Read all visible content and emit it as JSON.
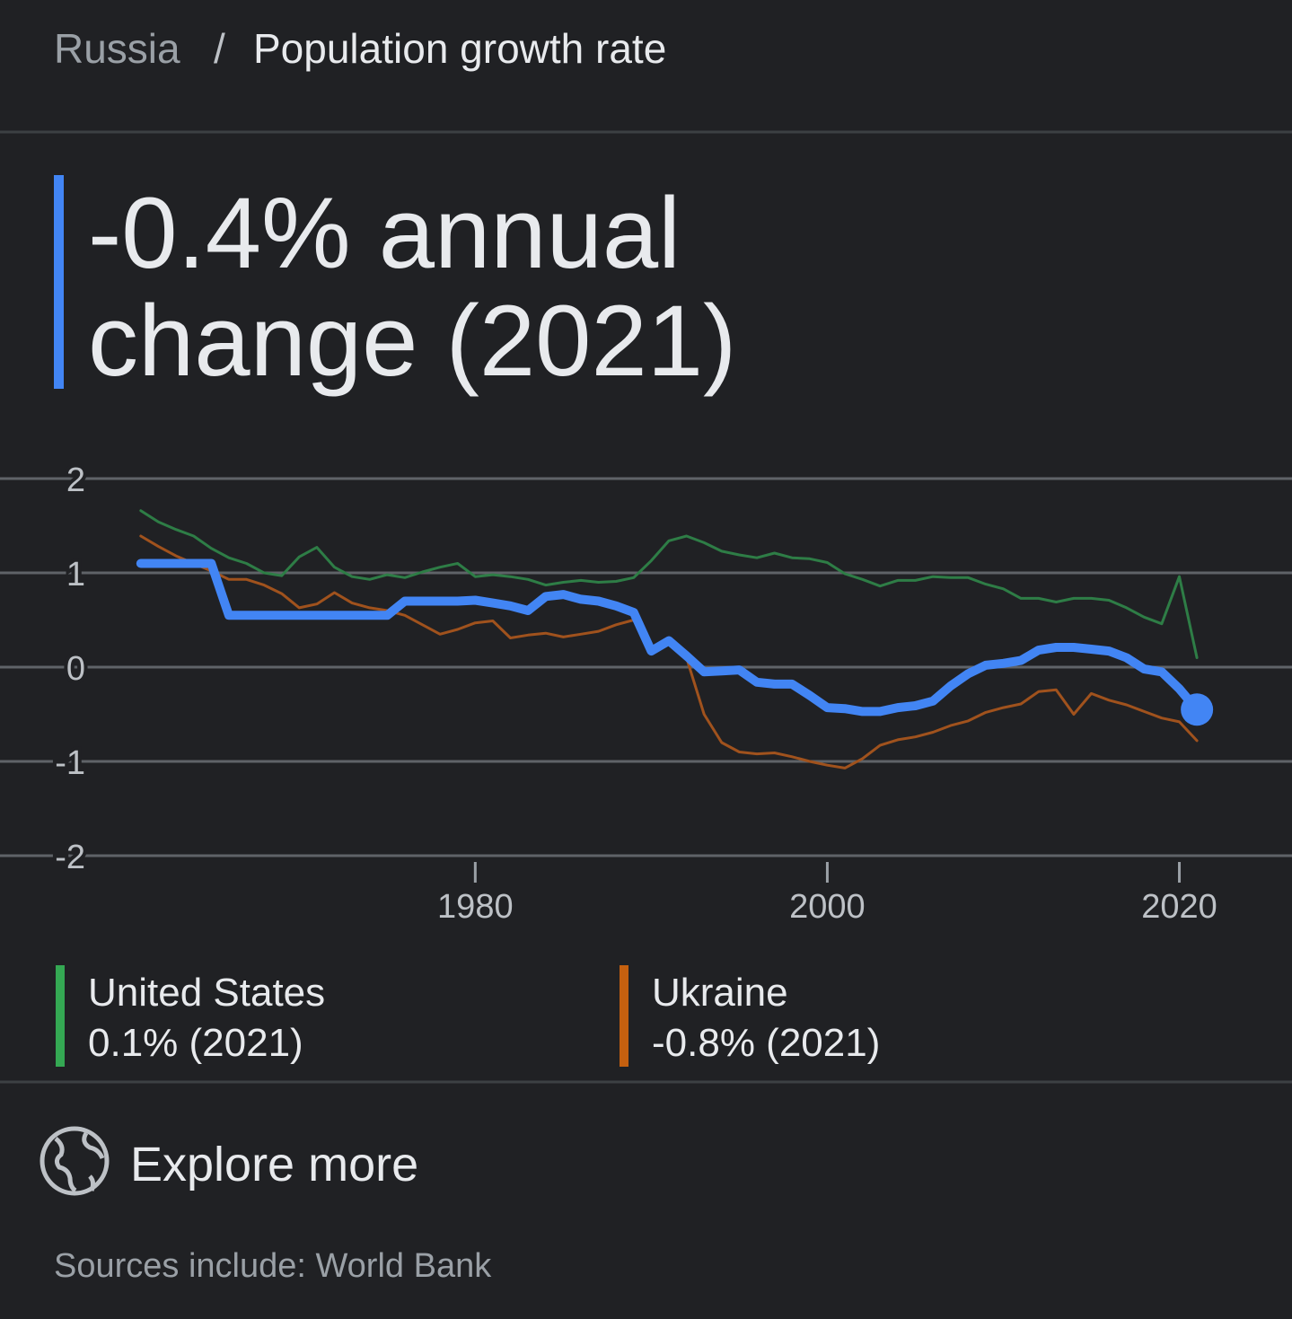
{
  "breadcrumb": {
    "parent": "Russia",
    "separator": "/",
    "current": "Population growth rate"
  },
  "headline": {
    "line1": "-0.4% annual",
    "line2": "change (2021)"
  },
  "chart_data": {
    "type": "line",
    "x": [
      1961,
      1962,
      1963,
      1964,
      1965,
      1966,
      1967,
      1968,
      1969,
      1970,
      1971,
      1972,
      1973,
      1974,
      1975,
      1976,
      1977,
      1978,
      1979,
      1980,
      1981,
      1982,
      1983,
      1984,
      1985,
      1986,
      1987,
      1988,
      1989,
      1990,
      1991,
      1992,
      1993,
      1994,
      1995,
      1996,
      1997,
      1998,
      1999,
      2000,
      2001,
      2002,
      2003,
      2004,
      2005,
      2006,
      2007,
      2008,
      2009,
      2010,
      2011,
      2012,
      2013,
      2014,
      2015,
      2016,
      2017,
      2018,
      2019,
      2020,
      2021
    ],
    "series": [
      {
        "name": "United States",
        "color": "#2e7d46",
        "legend_color": "#34a853",
        "summary": "0.1% (2021)",
        "values": [
          1.66,
          1.54,
          1.46,
          1.39,
          1.26,
          1.16,
          1.1,
          1.0,
          0.97,
          1.17,
          1.27,
          1.06,
          0.96,
          0.93,
          0.98,
          0.95,
          1.01,
          1.06,
          1.1,
          0.96,
          0.98,
          0.96,
          0.93,
          0.87,
          0.9,
          0.92,
          0.9,
          0.91,
          0.95,
          1.13,
          1.34,
          1.39,
          1.32,
          1.23,
          1.19,
          1.16,
          1.21,
          1.16,
          1.15,
          1.11,
          0.99,
          0.93,
          0.86,
          0.92,
          0.92,
          0.96,
          0.95,
          0.95,
          0.88,
          0.83,
          0.73,
          0.73,
          0.69,
          0.73,
          0.73,
          0.71,
          0.63,
          0.53,
          0.46,
          0.96,
          0.1
        ]
      },
      {
        "name": "Ukraine",
        "color": "#a0521d",
        "legend_color": "#c5600f",
        "summary": "-0.8% (2021)",
        "values": [
          1.39,
          1.28,
          1.18,
          1.1,
          1.02,
          0.93,
          0.93,
          0.87,
          0.78,
          0.63,
          0.67,
          0.79,
          0.68,
          0.63,
          0.6,
          0.55,
          0.45,
          0.35,
          0.4,
          0.47,
          0.49,
          0.31,
          0.34,
          0.36,
          0.32,
          0.35,
          0.38,
          0.45,
          0.5,
          0.2,
          0.28,
          0.1,
          -0.5,
          -0.8,
          -0.9,
          -0.92,
          -0.91,
          -0.95,
          -1.0,
          -1.04,
          -1.07,
          -0.97,
          -0.83,
          -0.77,
          -0.74,
          -0.69,
          -0.62,
          -0.57,
          -0.48,
          -0.43,
          -0.39,
          -0.26,
          -0.24,
          -0.5,
          -0.28,
          -0.35,
          -0.4,
          -0.47,
          -0.54,
          -0.58,
          -0.78
        ]
      },
      {
        "name": "Russia",
        "color": "#4285f4",
        "values": [
          1.1,
          1.1,
          1.1,
          1.1,
          1.1,
          0.55,
          0.55,
          0.55,
          0.55,
          0.55,
          0.55,
          0.55,
          0.55,
          0.55,
          0.55,
          0.7,
          0.7,
          0.7,
          0.7,
          0.71,
          0.68,
          0.65,
          0.6,
          0.75,
          0.77,
          0.72,
          0.7,
          0.65,
          0.58,
          0.17,
          0.28,
          0.12,
          -0.05,
          -0.04,
          -0.03,
          -0.16,
          -0.18,
          -0.18,
          -0.3,
          -0.43,
          -0.44,
          -0.47,
          -0.47,
          -0.43,
          -0.41,
          -0.36,
          -0.2,
          -0.07,
          0.02,
          0.04,
          0.07,
          0.18,
          0.21,
          0.21,
          0.19,
          0.17,
          0.1,
          -0.02,
          -0.05,
          -0.23,
          -0.45
        ]
      }
    ],
    "xlim": [
      1953,
      2026.4
    ],
    "ylim": [
      -2,
      2
    ],
    "xticks": [
      1980,
      2000,
      2020
    ],
    "yticks": [
      2,
      1,
      0,
      -1,
      -2
    ],
    "grid": true
  },
  "footer": {
    "explore": "Explore more",
    "sources": "Sources include: World Bank"
  }
}
